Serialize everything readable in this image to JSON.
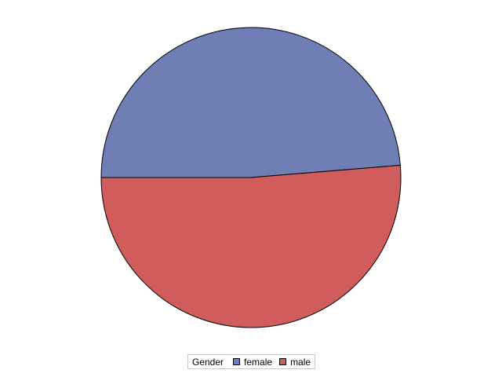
{
  "chart_data": {
    "type": "pie",
    "title": "",
    "slices": [
      {
        "label": "female",
        "value": 48.7,
        "color": "#6f7fb5"
      },
      {
        "label": "male",
        "value": 51.3,
        "color": "#d15c5c"
      }
    ],
    "start": "left, counter-clockwise from 9 o'clock",
    "legend": {
      "title": "Gender",
      "placement": "bottom-center"
    }
  }
}
